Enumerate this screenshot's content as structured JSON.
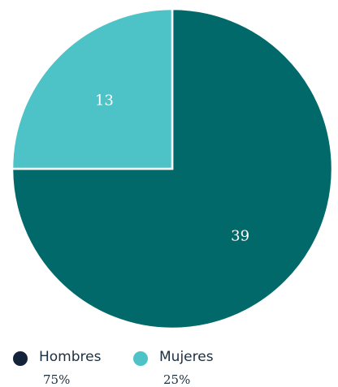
{
  "chart_data": {
    "type": "pie",
    "categories": [
      "Hombres",
      "Mujeres"
    ],
    "values": [
      39,
      13
    ],
    "percent_labels": [
      "75%",
      "25%"
    ],
    "slice_colors": [
      "#02696a",
      "#4dc3c7"
    ],
    "legend_colors": [
      "#13233a",
      "#4dc3c7"
    ],
    "legend_position": "bottom-left",
    "start_angle": "top (12 o'clock), clockwise"
  }
}
